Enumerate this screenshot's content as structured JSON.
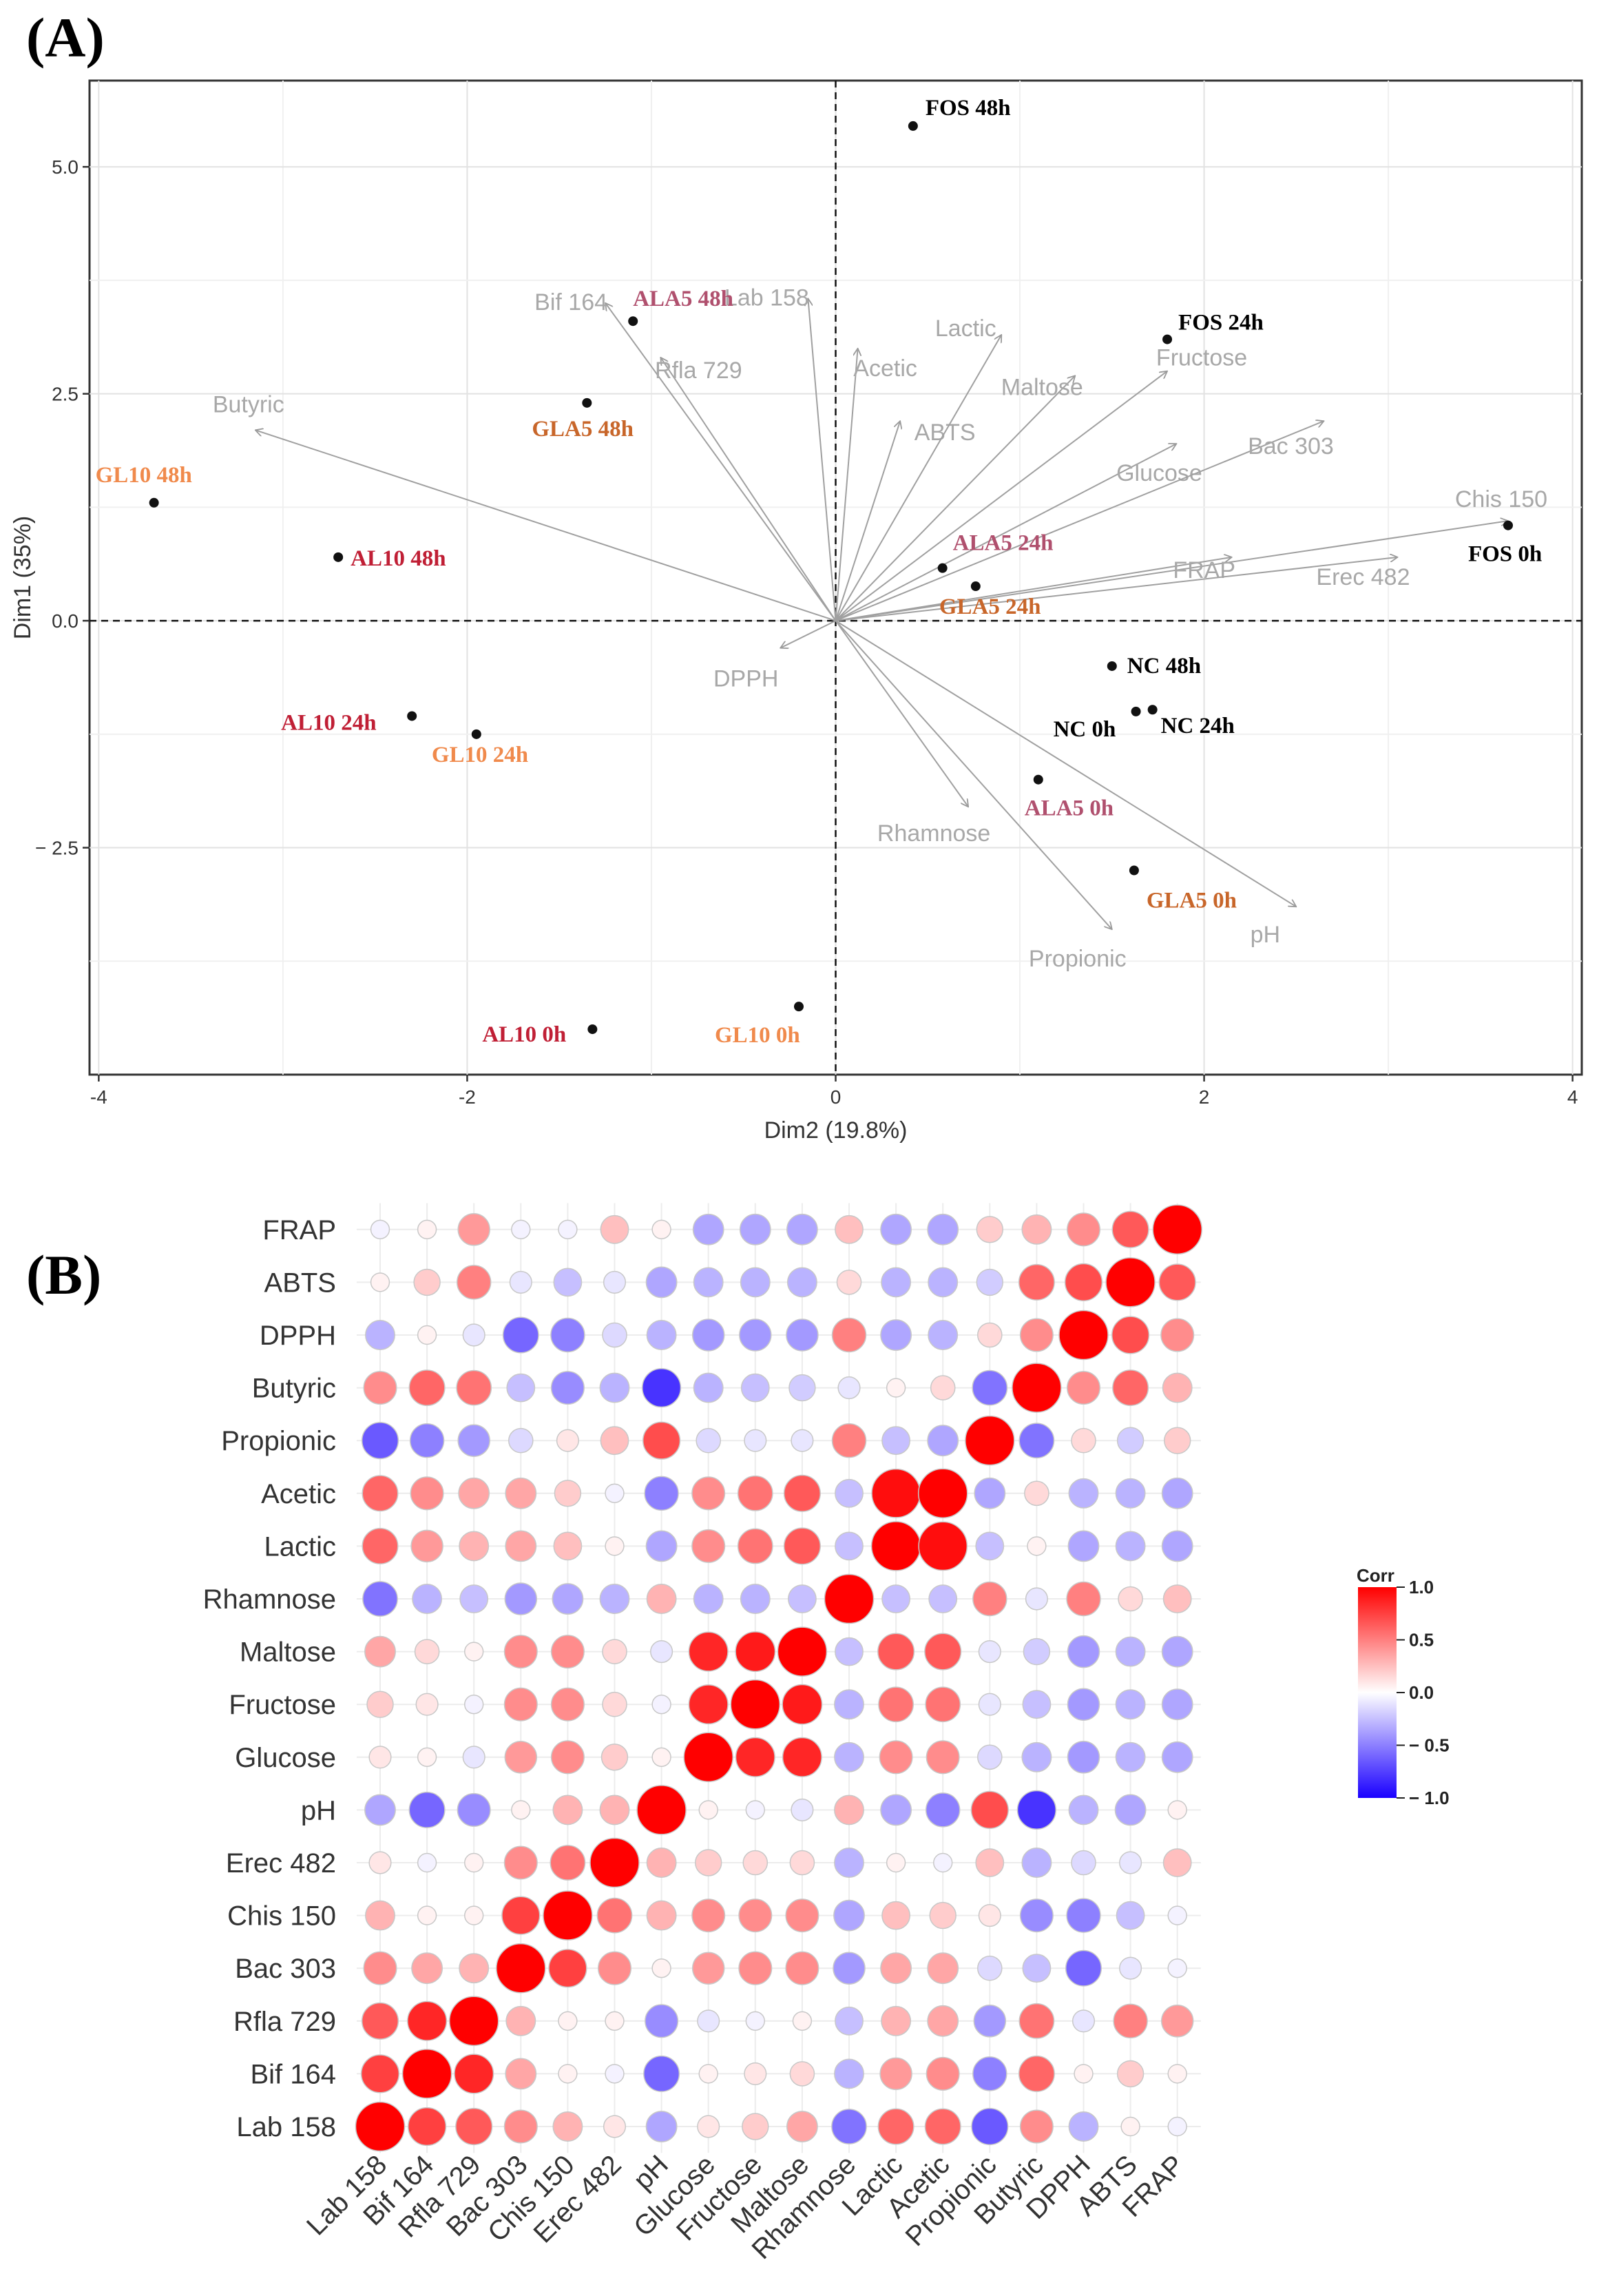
{
  "panel_a": {
    "label": "(A)"
  },
  "panel_b": {
    "label": "(B)"
  },
  "chart_data": [
    {
      "type": "scatter",
      "subtype": "pca-biplot",
      "xlabel": "Dim2 (19.8%)",
      "ylabel": "Dim1 (35%)",
      "xlim": [
        -4.05,
        4.05
      ],
      "ylim": [
        -5.0,
        5.95
      ],
      "xticks": [
        -4,
        -2,
        0,
        2,
        4
      ],
      "xtick_labels": [
        "-4",
        "-2",
        "0",
        "2",
        "4"
      ],
      "yticks": [
        -2.5,
        0.0,
        2.5,
        5.0
      ],
      "ytick_labels": [
        "− 2.5",
        "0.0",
        "2.5",
        "5.0"
      ],
      "grid": true,
      "variables": [
        {
          "name": "Butyric",
          "x": -3.15,
          "y": 2.1
        },
        {
          "name": "Bif 164",
          "x": -1.25,
          "y": 3.5
        },
        {
          "name": "Rfla 729",
          "x": -0.95,
          "y": 2.9
        },
        {
          "name": "Lab 158",
          "x": -0.15,
          "y": 3.55
        },
        {
          "name": "Acetic",
          "x": 0.12,
          "y": 3.0
        },
        {
          "name": "ABTS",
          "x": 0.35,
          "y": 2.2
        },
        {
          "name": "Lactic",
          "x": 0.9,
          "y": 3.15
        },
        {
          "name": "Maltose",
          "x": 1.3,
          "y": 2.7
        },
        {
          "name": "Fructose",
          "x": 1.8,
          "y": 2.75
        },
        {
          "name": "Glucose",
          "x": 1.85,
          "y": 1.95
        },
        {
          "name": "Bac 303",
          "x": 2.65,
          "y": 2.2
        },
        {
          "name": "Chis 150",
          "x": 3.65,
          "y": 1.1
        },
        {
          "name": "FRAP",
          "x": 2.15,
          "y": 0.7
        },
        {
          "name": "Erec 482",
          "x": 3.05,
          "y": 0.7
        },
        {
          "name": "DPPH",
          "x": -0.3,
          "y": -0.3
        },
        {
          "name": "Rhamnose",
          "x": 0.72,
          "y": -2.05
        },
        {
          "name": "Propionic",
          "x": 1.5,
          "y": -3.4
        },
        {
          "name": "pH",
          "x": 2.5,
          "y": -3.15
        }
      ],
      "observations": [
        {
          "name": "FOS 48h",
          "x": 0.42,
          "y": 5.45,
          "color": "#000000"
        },
        {
          "name": "FOS 24h",
          "x": 1.8,
          "y": 3.1,
          "color": "#000000"
        },
        {
          "name": "FOS 0h",
          "x": 3.65,
          "y": 1.05,
          "color": "#000000"
        },
        {
          "name": "ALA5 48h",
          "x": -1.1,
          "y": 3.3,
          "color": "#b0506e"
        },
        {
          "name": "GLA5 48h",
          "x": -1.35,
          "y": 2.4,
          "color": "#c8662a"
        },
        {
          "name": "GL10 48h",
          "x": -3.7,
          "y": 1.3,
          "color": "#f08a4c"
        },
        {
          "name": "AL10 48h",
          "x": -2.7,
          "y": 0.7,
          "color": "#c01f35"
        },
        {
          "name": "ALA5 24h",
          "x": 0.58,
          "y": 0.58,
          "color": "#b0506e"
        },
        {
          "name": "GLA5 24h",
          "x": 0.76,
          "y": 0.38,
          "color": "#c8662a"
        },
        {
          "name": "AL10 24h",
          "x": -2.3,
          "y": -1.05,
          "color": "#c01f35"
        },
        {
          "name": "GL10 24h",
          "x": -1.95,
          "y": -1.25,
          "color": "#f08a4c"
        },
        {
          "name": "NC 48h",
          "x": 1.5,
          "y": -0.5,
          "color": "#000000"
        },
        {
          "name": "NC 0h",
          "x": 1.63,
          "y": -1.0,
          "color": "#000000"
        },
        {
          "name": "NC 24h",
          "x": 1.72,
          "y": -0.98,
          "color": "#000000"
        },
        {
          "name": "ALA5 0h",
          "x": 1.1,
          "y": -1.75,
          "color": "#b0506e"
        },
        {
          "name": "GLA5 0h",
          "x": 1.62,
          "y": -2.75,
          "color": "#c8662a"
        },
        {
          "name": "AL10 0h",
          "x": -1.32,
          "y": -4.5,
          "color": "#c01f35"
        },
        {
          "name": "GL10 0h",
          "x": -0.2,
          "y": -4.25,
          "color": "#f08a4c"
        }
      ]
    },
    {
      "type": "heatmap",
      "subtype": "correlation-circle-matrix",
      "variables": [
        "Lab 158",
        "Bif 164",
        "Rfla 729",
        "Bac 303",
        "Chis 150",
        "Erec 482",
        "pH",
        "Glucose",
        "Fructose",
        "Maltose",
        "Rhamnose",
        "Lactic",
        "Acetic",
        "Propionic",
        "Butyric",
        "DPPH",
        "ABTS",
        "FRAP"
      ],
      "matrix": [
        [
          1.0,
          0.75,
          0.65,
          0.45,
          0.3,
          0.1,
          -0.35,
          0.1,
          0.2,
          0.35,
          -0.55,
          0.6,
          0.6,
          -0.65,
          0.45,
          -0.3,
          0.05,
          -0.05
        ],
        [
          0.75,
          1.0,
          0.85,
          0.35,
          0.05,
          -0.05,
          -0.6,
          0.05,
          0.1,
          0.15,
          -0.3,
          0.4,
          0.45,
          -0.5,
          0.6,
          0.05,
          0.2,
          0.05
        ],
        [
          0.65,
          0.85,
          1.0,
          0.3,
          0.05,
          0.05,
          -0.45,
          -0.1,
          -0.05,
          0.05,
          -0.25,
          0.3,
          0.35,
          -0.4,
          0.55,
          -0.1,
          0.5,
          0.4
        ],
        [
          0.45,
          0.35,
          0.3,
          1.0,
          0.75,
          0.45,
          0.05,
          0.4,
          0.45,
          0.45,
          -0.4,
          0.35,
          0.35,
          -0.15,
          -0.25,
          -0.6,
          -0.1,
          -0.05
        ],
        [
          0.3,
          0.05,
          0.05,
          0.75,
          1.0,
          0.55,
          0.3,
          0.45,
          0.45,
          0.45,
          -0.35,
          0.25,
          0.2,
          0.1,
          -0.45,
          -0.5,
          -0.25,
          -0.05
        ],
        [
          0.1,
          -0.05,
          0.05,
          0.45,
          0.55,
          1.0,
          0.3,
          0.2,
          0.15,
          0.15,
          -0.3,
          0.05,
          -0.05,
          0.25,
          -0.3,
          -0.15,
          -0.1,
          0.25
        ],
        [
          -0.35,
          -0.6,
          -0.45,
          0.05,
          0.3,
          0.3,
          1.0,
          0.05,
          -0.05,
          -0.1,
          0.3,
          -0.35,
          -0.5,
          0.7,
          -0.8,
          -0.3,
          -0.35,
          0.05
        ],
        [
          0.1,
          0.05,
          -0.1,
          0.4,
          0.45,
          0.2,
          0.05,
          1.0,
          0.85,
          0.85,
          -0.3,
          0.45,
          0.45,
          -0.15,
          -0.3,
          -0.4,
          -0.3,
          -0.35
        ],
        [
          0.2,
          0.1,
          -0.05,
          0.45,
          0.45,
          0.15,
          -0.05,
          0.85,
          1.0,
          0.9,
          -0.3,
          0.55,
          0.55,
          -0.1,
          -0.25,
          -0.4,
          -0.3,
          -0.35
        ],
        [
          0.35,
          0.15,
          0.05,
          0.45,
          0.45,
          0.15,
          -0.1,
          0.85,
          0.9,
          1.0,
          -0.25,
          0.65,
          0.65,
          -0.1,
          -0.2,
          -0.4,
          -0.3,
          -0.35
        ],
        [
          -0.55,
          -0.3,
          -0.25,
          -0.4,
          -0.35,
          -0.3,
          0.3,
          -0.3,
          -0.3,
          -0.25,
          1.0,
          -0.25,
          -0.25,
          0.5,
          -0.1,
          0.5,
          0.15,
          0.25
        ],
        [
          0.6,
          0.4,
          0.3,
          0.35,
          0.25,
          0.05,
          -0.35,
          0.45,
          0.55,
          0.65,
          -0.25,
          1.0,
          0.95,
          -0.25,
          0.05,
          -0.35,
          -0.3,
          -0.35
        ],
        [
          0.6,
          0.45,
          0.35,
          0.35,
          0.2,
          -0.05,
          -0.5,
          0.45,
          0.55,
          0.65,
          -0.25,
          0.95,
          1.0,
          -0.35,
          0.15,
          -0.3,
          -0.3,
          -0.35
        ],
        [
          -0.65,
          -0.5,
          -0.4,
          -0.15,
          0.1,
          0.25,
          0.7,
          -0.15,
          -0.1,
          -0.1,
          0.5,
          -0.25,
          -0.35,
          1.0,
          -0.55,
          0.15,
          -0.2,
          0.2
        ],
        [
          0.45,
          0.6,
          0.55,
          -0.25,
          -0.45,
          -0.3,
          -0.8,
          -0.3,
          -0.25,
          -0.2,
          -0.1,
          0.05,
          0.15,
          -0.55,
          1.0,
          0.45,
          0.6,
          0.3
        ],
        [
          -0.3,
          0.05,
          -0.1,
          -0.6,
          -0.5,
          -0.15,
          -0.3,
          -0.4,
          -0.4,
          -0.4,
          0.5,
          -0.35,
          -0.3,
          0.15,
          0.45,
          1.0,
          0.7,
          0.45
        ],
        [
          0.05,
          0.2,
          0.5,
          -0.1,
          -0.25,
          -0.1,
          -0.35,
          -0.3,
          -0.3,
          -0.3,
          0.15,
          -0.3,
          -0.3,
          -0.2,
          0.6,
          0.7,
          1.0,
          0.65
        ],
        [
          -0.05,
          0.05,
          0.4,
          -0.05,
          -0.05,
          0.25,
          0.05,
          -0.35,
          -0.35,
          -0.35,
          0.25,
          -0.35,
          -0.35,
          0.2,
          0.3,
          0.45,
          0.65,
          1.0
        ]
      ],
      "legend": {
        "title": "Corr",
        "ticks": [
          1.0,
          0.5,
          0.0,
          -0.5,
          -1.0
        ],
        "tick_labels": [
          "1.0",
          "0.5",
          "0.0",
          "− 0.5",
          "− 1.0"
        ],
        "colors": [
          "#ff0000",
          "#ffffff",
          "#1a00ff"
        ]
      }
    }
  ]
}
